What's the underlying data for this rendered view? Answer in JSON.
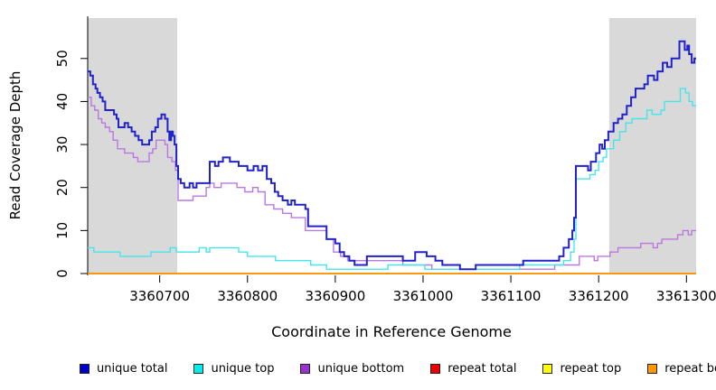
{
  "chart_data": {
    "type": "line",
    "subtype": "step-coverage-plot",
    "title": "",
    "xlabel": "Coordinate in Reference Genome",
    "ylabel": "Read Coverage Depth",
    "xlim": [
      3360618,
      3361311
    ],
    "ylim": [
      0,
      59.4
    ],
    "xticks": [
      3360700,
      3360800,
      3360900,
      3361000,
      3361100,
      3361200,
      3361300
    ],
    "yticks": [
      0,
      10,
      20,
      30,
      40,
      50
    ],
    "grid": false,
    "shaded_regions": [
      [
        3360618,
        3360720
      ],
      [
        3361212,
        3361311
      ]
    ],
    "shaded_color": "#d9d9d9",
    "series": [
      {
        "name": "unique total",
        "color": "#2222cc",
        "width": 2,
        "z": 6,
        "points": [
          [
            3360618,
            47
          ],
          [
            3360621,
            46
          ],
          [
            3360624,
            44
          ],
          [
            3360627,
            43
          ],
          [
            3360629,
            42
          ],
          [
            3360632,
            41
          ],
          [
            3360635,
            40
          ],
          [
            3360638,
            38
          ],
          [
            3360648,
            37
          ],
          [
            3360651,
            36
          ],
          [
            3360653,
            34
          ],
          [
            3360660,
            35
          ],
          [
            3360664,
            34
          ],
          [
            3360668,
            33
          ],
          [
            3360672,
            32
          ],
          [
            3360676,
            31
          ],
          [
            3360680,
            30
          ],
          [
            3360688,
            31
          ],
          [
            3360691,
            33
          ],
          [
            3360695,
            34
          ],
          [
            3360698,
            36
          ],
          [
            3360702,
            37
          ],
          [
            3360706,
            36
          ],
          [
            3360709,
            33
          ],
          [
            3360711,
            31
          ],
          [
            3360713,
            33
          ],
          [
            3360715,
            32
          ],
          [
            3360717,
            30
          ],
          [
            3360719,
            25
          ],
          [
            3360721,
            22
          ],
          [
            3360724,
            21
          ],
          [
            3360728,
            20
          ],
          [
            3360734,
            21
          ],
          [
            3360738,
            20
          ],
          [
            3360742,
            21
          ],
          [
            3360757,
            26
          ],
          [
            3360763,
            25
          ],
          [
            3360767,
            26
          ],
          [
            3360772,
            27
          ],
          [
            3360780,
            26
          ],
          [
            3360790,
            25
          ],
          [
            3360800,
            24
          ],
          [
            3360807,
            25
          ],
          [
            3360812,
            24
          ],
          [
            3360817,
            25
          ],
          [
            3360822,
            22
          ],
          [
            3360827,
            21
          ],
          [
            3360831,
            19
          ],
          [
            3360835,
            18
          ],
          [
            3360840,
            17
          ],
          [
            3360846,
            16
          ],
          [
            3360850,
            17
          ],
          [
            3360854,
            16
          ],
          [
            3360866,
            15
          ],
          [
            3360869,
            11
          ],
          [
            3360890,
            8
          ],
          [
            3360900,
            7
          ],
          [
            3360905,
            5
          ],
          [
            3360910,
            4
          ],
          [
            3360916,
            3
          ],
          [
            3360922,
            2
          ],
          [
            3360936,
            4
          ],
          [
            3360977,
            3
          ],
          [
            3360991,
            5
          ],
          [
            3361004,
            4
          ],
          [
            3361014,
            3
          ],
          [
            3361022,
            2
          ],
          [
            3361042,
            1
          ],
          [
            3361060,
            2
          ],
          [
            3361114,
            3
          ],
          [
            3361155,
            4
          ],
          [
            3361160,
            6
          ],
          [
            3361166,
            8
          ],
          [
            3361170,
            10
          ],
          [
            3361172,
            13
          ],
          [
            3361174,
            25
          ],
          [
            3361188,
            24
          ],
          [
            3361191,
            26
          ],
          [
            3361197,
            28
          ],
          [
            3361201,
            30
          ],
          [
            3361204,
            29
          ],
          [
            3361207,
            31
          ],
          [
            3361211,
            33
          ],
          [
            3361217,
            35
          ],
          [
            3361222,
            36
          ],
          [
            3361227,
            37
          ],
          [
            3361232,
            39
          ],
          [
            3361237,
            41
          ],
          [
            3361242,
            43
          ],
          [
            3361252,
            44
          ],
          [
            3361256,
            46
          ],
          [
            3361263,
            45
          ],
          [
            3361267,
            47
          ],
          [
            3361273,
            49
          ],
          [
            3361278,
            48
          ],
          [
            3361283,
            50
          ],
          [
            3361292,
            54
          ],
          [
            3361298,
            52
          ],
          [
            3361301,
            53
          ],
          [
            3361303,
            51
          ],
          [
            3361306,
            49
          ],
          [
            3361309,
            50
          ]
        ]
      },
      {
        "name": "unique top",
        "color": "#45e6ea",
        "width": 1.4,
        "z": 5,
        "points": [
          [
            3360618,
            6
          ],
          [
            3360625,
            5
          ],
          [
            3360655,
            4
          ],
          [
            3360690,
            5
          ],
          [
            3360712,
            6
          ],
          [
            3360719,
            5
          ],
          [
            3360745,
            6
          ],
          [
            3360753,
            5
          ],
          [
            3360757,
            6
          ],
          [
            3360790,
            5
          ],
          [
            3360800,
            4
          ],
          [
            3360832,
            3
          ],
          [
            3360872,
            2
          ],
          [
            3360890,
            1
          ],
          [
            3360960,
            2
          ],
          [
            3361002,
            1
          ],
          [
            3361110,
            2
          ],
          [
            3361160,
            3
          ],
          [
            3361168,
            5
          ],
          [
            3361172,
            8
          ],
          [
            3361174,
            22
          ],
          [
            3361190,
            23
          ],
          [
            3361196,
            24
          ],
          [
            3361200,
            26
          ],
          [
            3361205,
            27
          ],
          [
            3361209,
            29
          ],
          [
            3361217,
            31
          ],
          [
            3361224,
            33
          ],
          [
            3361231,
            35
          ],
          [
            3361238,
            36
          ],
          [
            3361255,
            38
          ],
          [
            3361261,
            37
          ],
          [
            3361271,
            38
          ],
          [
            3361275,
            40
          ],
          [
            3361293,
            43
          ],
          [
            3361299,
            42
          ],
          [
            3361303,
            40
          ],
          [
            3361307,
            39
          ]
        ]
      },
      {
        "name": "unique bottom",
        "color": "#bb77e0",
        "width": 1.4,
        "z": 4,
        "points": [
          [
            3360618,
            41
          ],
          [
            3360622,
            39
          ],
          [
            3360626,
            38
          ],
          [
            3360630,
            36
          ],
          [
            3360634,
            35
          ],
          [
            3360638,
            34
          ],
          [
            3360643,
            33
          ],
          [
            3360647,
            31
          ],
          [
            3360652,
            29
          ],
          [
            3360660,
            28
          ],
          [
            3360670,
            27
          ],
          [
            3360675,
            26
          ],
          [
            3360688,
            28
          ],
          [
            3360692,
            29
          ],
          [
            3360696,
            31
          ],
          [
            3360706,
            30
          ],
          [
            3360709,
            27
          ],
          [
            3360714,
            26
          ],
          [
            3360718,
            24
          ],
          [
            3360721,
            17
          ],
          [
            3360738,
            18
          ],
          [
            3360753,
            20
          ],
          [
            3360757,
            21
          ],
          [
            3360762,
            20
          ],
          [
            3360770,
            21
          ],
          [
            3360788,
            20
          ],
          [
            3360797,
            19
          ],
          [
            3360806,
            20
          ],
          [
            3360812,
            19
          ],
          [
            3360820,
            16
          ],
          [
            3360830,
            15
          ],
          [
            3360840,
            14
          ],
          [
            3360850,
            13
          ],
          [
            3360866,
            10
          ],
          [
            3360890,
            8
          ],
          [
            3360898,
            5
          ],
          [
            3360906,
            4
          ],
          [
            3360914,
            3
          ],
          [
            3360977,
            2
          ],
          [
            3361010,
            1
          ],
          [
            3361150,
            2
          ],
          [
            3361178,
            4
          ],
          [
            3361195,
            3
          ],
          [
            3361199,
            4
          ],
          [
            3361213,
            5
          ],
          [
            3361222,
            6
          ],
          [
            3361248,
            7
          ],
          [
            3361262,
            6
          ],
          [
            3361267,
            7
          ],
          [
            3361272,
            8
          ],
          [
            3361290,
            9
          ],
          [
            3361296,
            10
          ],
          [
            3361302,
            9
          ],
          [
            3361306,
            10
          ]
        ]
      },
      {
        "name": "repeat total",
        "color": "#dd0000",
        "width": 1.4,
        "z": 1,
        "points": [
          [
            3360618,
            0
          ]
        ]
      },
      {
        "name": "repeat top",
        "color": "#ffff00",
        "width": 1.4,
        "z": 2,
        "points": [
          [
            3360618,
            0
          ]
        ]
      },
      {
        "name": "repeat bottom",
        "color": "#ff8c00",
        "width": 1.6,
        "z": 3,
        "points": [
          [
            3360618,
            0
          ]
        ]
      }
    ]
  },
  "legend": {
    "position": "bottom",
    "items": [
      {
        "label": "unique total",
        "color": "#0000cc"
      },
      {
        "label": "unique top",
        "color": "#00eeee"
      },
      {
        "label": "unique bottom",
        "color": "#9933cc"
      },
      {
        "label": "repeat total",
        "color": "#ee0000"
      },
      {
        "label": "repeat top",
        "color": "#ffff00"
      },
      {
        "label": "repeat bottom",
        "color": "#ff9900"
      }
    ]
  }
}
